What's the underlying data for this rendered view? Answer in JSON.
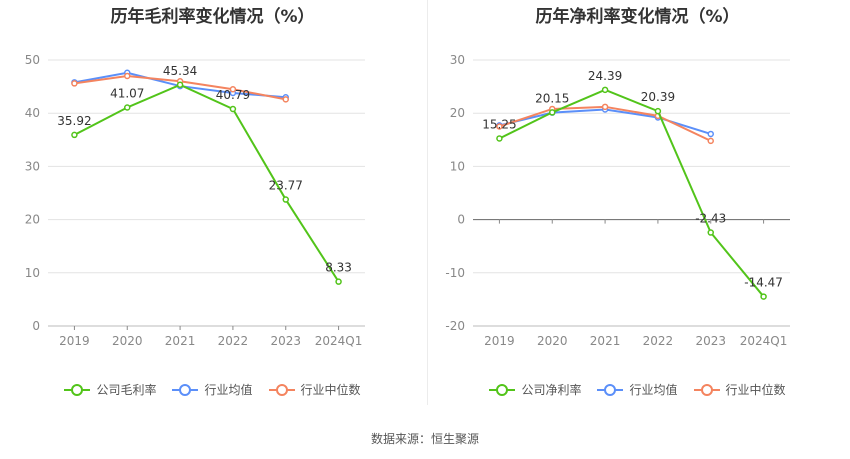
{
  "chart_data": [
    {
      "type": "line",
      "title": "历年毛利率变化情况（%）",
      "categories": [
        "2019",
        "2020",
        "2021",
        "2022",
        "2023",
        "2024Q1"
      ],
      "ylim": [
        0,
        50
      ],
      "yticks": [
        0,
        10,
        20,
        30,
        40,
        50
      ],
      "grid": true,
      "legend_position": "bottom",
      "series": [
        {
          "name": "公司毛利率",
          "color": "#52c41a",
          "values": [
            35.92,
            41.07,
            45.34,
            40.79,
            23.77,
            8.33
          ],
          "labels": [
            "35.92",
            "41.07",
            "45.34",
            "40.79",
            "23.77",
            "8.33"
          ],
          "label_positions": [
            "above",
            "above",
            "above",
            "above",
            "above",
            "above"
          ]
        },
        {
          "name": "行业均值",
          "color": "#5b8ff9",
          "values": [
            45.8,
            47.6,
            45.1,
            43.8,
            43.0,
            null
          ]
        },
        {
          "name": "行业中位数",
          "color": "#f4845f",
          "values": [
            45.6,
            47.0,
            46.0,
            44.5,
            42.6,
            null
          ]
        }
      ]
    },
    {
      "type": "line",
      "title": "历年净利率变化情况（%）",
      "categories": [
        "2019",
        "2020",
        "2021",
        "2022",
        "2023",
        "2024Q1"
      ],
      "ylim": [
        -20,
        30
      ],
      "yticks": [
        -20,
        -10,
        0,
        10,
        20,
        30
      ],
      "grid": true,
      "legend_position": "bottom",
      "series": [
        {
          "name": "公司净利率",
          "color": "#52c41a",
          "values": [
            15.25,
            20.15,
            24.39,
            20.39,
            -2.43,
            -14.47
          ],
          "labels": [
            "15.25",
            "20.15",
            "24.39",
            "20.39",
            "-2.43",
            "-14.47"
          ],
          "label_positions": [
            "above",
            "above",
            "above",
            "above",
            "above",
            "above"
          ]
        },
        {
          "name": "行业均值",
          "color": "#5b8ff9",
          "values": [
            17.7,
            20.1,
            20.7,
            19.2,
            16.1,
            null
          ]
        },
        {
          "name": "行业中位数",
          "color": "#f4845f",
          "values": [
            17.5,
            20.8,
            21.2,
            19.5,
            14.8,
            null
          ]
        }
      ]
    }
  ],
  "source_text": "数据来源：恒生聚源"
}
